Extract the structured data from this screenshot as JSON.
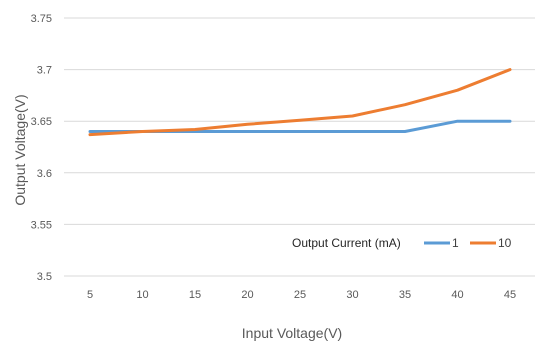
{
  "chart_data": {
    "type": "line",
    "title": "",
    "xlabel": "Input Voltage(V)",
    "ylabel": "Output Voltage(V)",
    "x": [
      5,
      10,
      15,
      20,
      25,
      30,
      35,
      40,
      45
    ],
    "x_tick_labels": [
      "5",
      "10",
      "15",
      "20",
      "25",
      "30",
      "35",
      "40",
      "45"
    ],
    "ylim": [
      3.5,
      3.75
    ],
    "y_tick_labels": [
      "3.5",
      "3.55",
      "3.6",
      "3.65",
      "3.7",
      "3.75"
    ],
    "grid": "horizontal",
    "legend": {
      "title": "Output Current (mA)",
      "placement": "bottom-right"
    },
    "series": [
      {
        "name": "1",
        "color": "#5b9bd5",
        "values": [
          3.64,
          3.64,
          3.64,
          3.64,
          3.64,
          3.64,
          3.64,
          3.65,
          3.65
        ]
      },
      {
        "name": "10",
        "color": "#ed7d31",
        "values": [
          3.637,
          3.64,
          3.642,
          3.647,
          3.651,
          3.655,
          3.666,
          3.68,
          3.7
        ]
      }
    ]
  }
}
